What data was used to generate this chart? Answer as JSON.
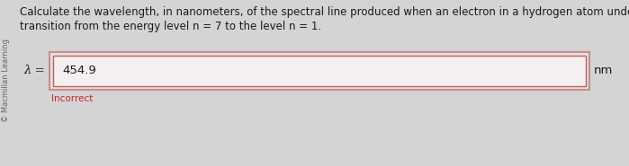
{
  "background_color": "#d4d4d4",
  "question_text_line1": "Calculate the wavelength, in nanometers, of the spectral line produced when an electron in a hydrogen atom undergoes the",
  "question_text_line2": "transition from the energy level n = 7 to the level n = 1.",
  "lambda_label": "λ =",
  "input_value": "454.9",
  "unit_label": "nm",
  "incorrect_label": "Incorrect",
  "sidebar_label": "© Macmillan Learning",
  "outer_box_color": "#e8e0e0",
  "outer_border_color": "#c09090",
  "input_box_color": "#f5f0f0",
  "input_border_color": "#c06060",
  "incorrect_color": "#cc2222",
  "text_color": "#1a1a1a",
  "sidebar_color": "#666666",
  "question_fontsize": 8.5,
  "input_fontsize": 9.5,
  "label_fontsize": 9.5,
  "small_fontsize": 7.5,
  "sidebar_fontsize": 6.0
}
